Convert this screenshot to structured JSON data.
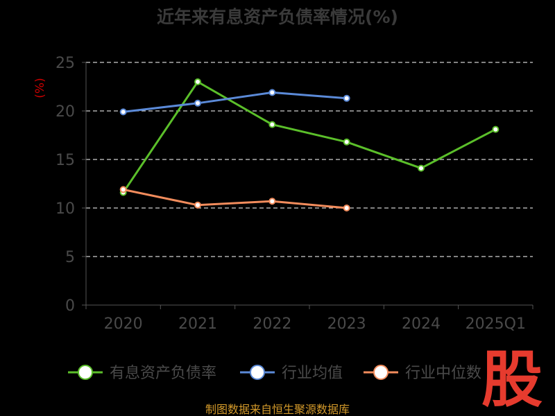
{
  "chart_data": {
    "type": "line",
    "title": "近年来有息资产负债率情况(%)",
    "ylabel": "(%)",
    "categories": [
      "2020",
      "2021",
      "2022",
      "2023",
      "2024",
      "2025Q1"
    ],
    "ylim": [
      0,
      25
    ],
    "yticks": [
      "0",
      "5",
      "10",
      "15",
      "20",
      "25"
    ],
    "grid": true,
    "legend_position": "bottom",
    "series": [
      {
        "name": "有息资产负债率",
        "color": "#5bbf2a",
        "values": [
          11.6,
          23.0,
          18.6,
          16.8,
          14.1,
          18.1
        ]
      },
      {
        "name": "行业均值",
        "color": "#5b8ad8",
        "values": [
          19.9,
          20.8,
          21.9,
          21.3,
          null,
          null
        ]
      },
      {
        "name": "行业中位数",
        "color": "#f28c5c",
        "values": [
          11.9,
          10.3,
          10.7,
          10.0,
          null,
          null
        ]
      }
    ]
  },
  "source": "制图数据来自恒生聚源数据库",
  "logo": "股"
}
